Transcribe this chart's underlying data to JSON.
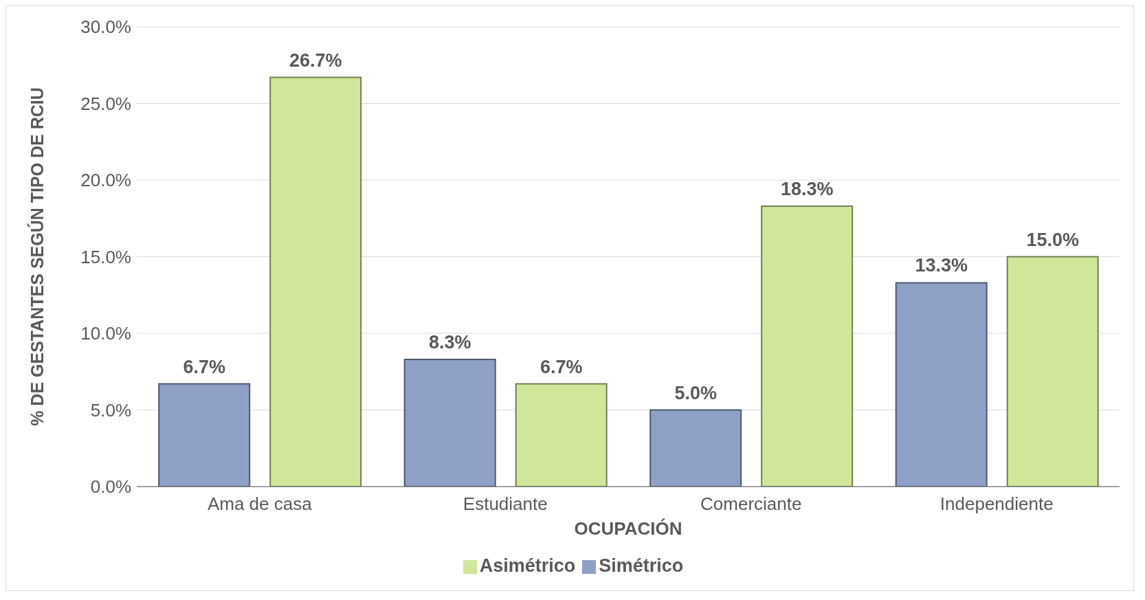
{
  "chart_data": {
    "type": "bar",
    "xlabel": "OCUPACIÓN",
    "ylabel": "% DE GESTANTES SEGÚN TIPO DE RCIU",
    "categories": [
      "Ama de casa",
      "Estudiante",
      "Comerciante",
      "Independiente"
    ],
    "series": [
      {
        "name": "Simétrico",
        "color": "#8fa0c6",
        "values": [
          6.7,
          8.3,
          5.0,
          13.3
        ],
        "value_labels": [
          "6.7%",
          "8.3%",
          "5.0%",
          "13.3%"
        ]
      },
      {
        "name": "Asimétrico",
        "color": "#d0e79a",
        "values": [
          26.7,
          6.7,
          18.3,
          15.0
        ],
        "value_labels": [
          "26.7%",
          "6.7%",
          "18.3%",
          "15.0%"
        ]
      }
    ],
    "ylim": [
      0,
      30
    ],
    "yticks": [
      {
        "value": 0,
        "label": "0.0%"
      },
      {
        "value": 5,
        "label": "5.0%"
      },
      {
        "value": 10,
        "label": "10.0%"
      },
      {
        "value": 15,
        "label": "15.0%"
      },
      {
        "value": 20,
        "label": "20.0%"
      },
      {
        "value": 25,
        "label": "25.0%"
      },
      {
        "value": 30,
        "label": "30.0%"
      }
    ],
    "grid": "y",
    "legend": "bottom"
  }
}
